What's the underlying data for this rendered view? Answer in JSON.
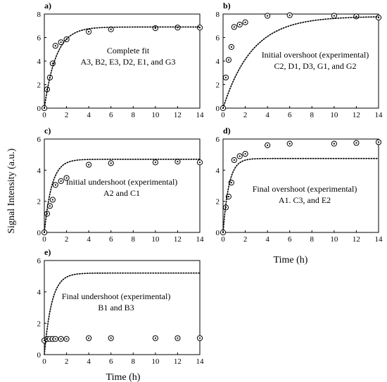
{
  "figure": {
    "ylabel": "Signal Intensity (a.u.)",
    "xlabel": "Time (h)"
  },
  "chart_data": [
    {
      "type": "scatter",
      "panel_label": "a)",
      "annotation_lines": [
        "Complete fit",
        "A3, B2, E3, D2, E1, and G3"
      ],
      "xlabel": "",
      "ylabel": "",
      "xlim": [
        0,
        14
      ],
      "ylim": [
        0,
        8
      ],
      "xticks": [
        0,
        2,
        4,
        6,
        8,
        10,
        12,
        14
      ],
      "yticks": [
        0,
        2,
        4,
        6,
        8
      ],
      "x_tick_labels_visible": true,
      "grid": false,
      "series": [
        {
          "style": "markers",
          "x": [
            0,
            0.25,
            0.5,
            0.75,
            1,
            1.5,
            2,
            4,
            6,
            10,
            12,
            14
          ],
          "y": [
            0,
            1.6,
            2.6,
            3.8,
            5.3,
            5.6,
            5.85,
            6.5,
            6.7,
            6.8,
            6.85,
            6.85
          ]
        },
        {
          "style": "dotted-fit",
          "asymptote": 6.9,
          "rate": 0.95
        }
      ]
    },
    {
      "type": "scatter",
      "panel_label": "b)",
      "annotation_lines": [
        "Initial overshoot (experimental)",
        "C2, D1, D3, G1, and G2"
      ],
      "xlabel": "",
      "ylabel": "",
      "xlim": [
        0,
        14
      ],
      "ylim": [
        0,
        8
      ],
      "xticks": [
        0,
        2,
        4,
        6,
        8,
        10,
        12,
        14
      ],
      "yticks": [
        0,
        2,
        4,
        6,
        8
      ],
      "x_tick_labels_visible": true,
      "grid": false,
      "series": [
        {
          "style": "markers",
          "x": [
            0,
            0.25,
            0.5,
            0.75,
            1,
            1.5,
            2,
            4,
            6,
            10,
            12,
            14
          ],
          "y": [
            0,
            2.6,
            4.1,
            5.2,
            6.9,
            7.1,
            7.3,
            7.85,
            7.9,
            7.85,
            7.8,
            7.7
          ]
        },
        {
          "style": "dotted-fit",
          "asymptote": 7.8,
          "rate": 0.38
        }
      ]
    },
    {
      "type": "scatter",
      "panel_label": "c)",
      "annotation_lines": [
        "Initial undershoot (experimental)",
        "A2 and C1"
      ],
      "xlabel": "",
      "ylabel": "",
      "xlim": [
        0,
        14
      ],
      "ylim": [
        0,
        6
      ],
      "xticks": [
        0,
        2,
        4,
        6,
        8,
        10,
        12,
        14
      ],
      "yticks": [
        0,
        2,
        4,
        6
      ],
      "x_tick_labels_visible": true,
      "grid": false,
      "series": [
        {
          "style": "markers",
          "x": [
            0,
            0.25,
            0.5,
            0.75,
            1,
            1.5,
            2,
            4,
            6,
            10,
            12,
            14
          ],
          "y": [
            0,
            1.2,
            1.7,
            2.1,
            3.05,
            3.3,
            3.5,
            4.35,
            4.45,
            4.5,
            4.55,
            4.5
          ]
        },
        {
          "style": "dotted-fit",
          "asymptote": 4.7,
          "rate": 1.5
        }
      ]
    },
    {
      "type": "scatter",
      "panel_label": "d)",
      "annotation_lines": [
        "Final overshoot (experimental)",
        "A1. C3, and E2"
      ],
      "xlabel": "Time (h)",
      "ylabel": "",
      "xlim": [
        0,
        14
      ],
      "ylim": [
        0,
        6
      ],
      "xticks": [
        0,
        2,
        4,
        6,
        8,
        10,
        12,
        14
      ],
      "yticks": [
        0,
        2,
        4,
        6
      ],
      "x_tick_labels_visible": true,
      "grid": false,
      "series": [
        {
          "style": "markers",
          "x": [
            0,
            0.25,
            0.5,
            0.75,
            1,
            1.5,
            2,
            4,
            6,
            10,
            12,
            14
          ],
          "y": [
            0,
            1.6,
            2.3,
            3.2,
            4.65,
            4.9,
            5.05,
            5.6,
            5.7,
            5.7,
            5.75,
            5.8
          ]
        },
        {
          "style": "dotted-fit",
          "asymptote": 4.75,
          "rate": 1.9
        }
      ]
    },
    {
      "type": "scatter",
      "panel_label": "e)",
      "annotation_lines": [
        "Final undershoot (experimental)",
        "B1 and B3"
      ],
      "xlabel": "Time (h)",
      "ylabel": "",
      "xlim": [
        0,
        14
      ],
      "ylim": [
        0,
        6
      ],
      "xticks": [
        0,
        2,
        4,
        6,
        8,
        10,
        12,
        14
      ],
      "yticks": [
        0,
        2,
        4,
        6
      ],
      "x_tick_labels_visible": true,
      "grid": false,
      "series": [
        {
          "style": "markers",
          "x": [
            0,
            0.25,
            0.5,
            0.75,
            1,
            1.5,
            2,
            4,
            6,
            10,
            12,
            14
          ],
          "y": [
            0.9,
            1.0,
            1.0,
            1.0,
            1.0,
            1.0,
            1.0,
            1.05,
            1.05,
            1.05,
            1.05,
            1.05
          ]
        },
        {
          "style": "dotted-fit",
          "asymptote": 5.2,
          "rate": 1.5
        }
      ]
    }
  ]
}
